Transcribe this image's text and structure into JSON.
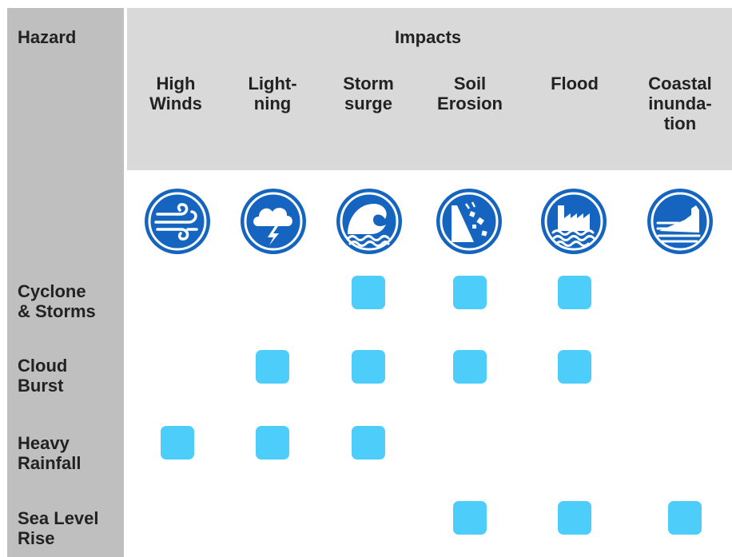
{
  "header": {
    "hazard_label": "Hazard",
    "impacts_label": "Impacts"
  },
  "columns": [
    {
      "label": "High\nWinds",
      "icon": "wind-icon"
    },
    {
      "label": "Light-\nning",
      "icon": "lightning-icon"
    },
    {
      "label": "Storm\nsurge",
      "icon": "storm-surge-icon"
    },
    {
      "label": "Soil\nErosion",
      "icon": "landslide-icon"
    },
    {
      "label": "Flood",
      "icon": "flood-icon"
    },
    {
      "label": "Coastal\ninunda-\ntion",
      "icon": "coastal-inundation-icon"
    }
  ],
  "rows": [
    {
      "label": "Cyclone\n& Storms",
      "impacts": [
        false,
        false,
        true,
        true,
        true,
        false
      ]
    },
    {
      "label": "Cloud\nBurst",
      "impacts": [
        false,
        true,
        true,
        true,
        true,
        false
      ]
    },
    {
      "label": "Heavy\nRainfall",
      "impacts": [
        true,
        true,
        true,
        false,
        false,
        false
      ]
    },
    {
      "label": "Sea Level\nRise",
      "impacts": [
        false,
        false,
        false,
        true,
        true,
        true
      ]
    }
  ],
  "colors": {
    "icon_blue": "#1565c0",
    "marker_cyan": "#4dcdfa",
    "hazard_gray": "#bfbfbf",
    "impacts_gray": "#d9d9d9"
  }
}
